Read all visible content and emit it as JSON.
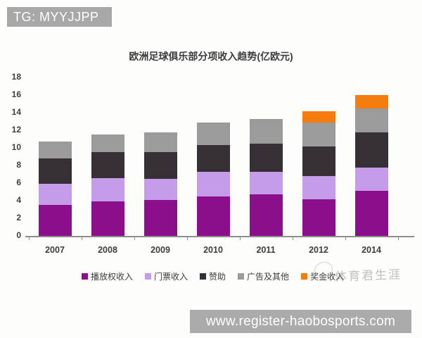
{
  "badges": {
    "top_left": "TG: MYYJJPP",
    "bottom_right": "www.register-haobosports.com"
  },
  "watermark": {
    "text": "体育君生涯"
  },
  "chart_data": {
    "type": "bar",
    "stacked": true,
    "title": "欧洲足球俱乐部分项收入趋势(亿欧元)",
    "xlabel": "",
    "ylabel": "",
    "ylim": [
      0,
      18
    ],
    "ytick_step": 2,
    "grid": false,
    "legend_position": "bottom",
    "categories": [
      "2007",
      "2008",
      "2009",
      "2010",
      "2011",
      "2012",
      "2014"
    ],
    "series": [
      {
        "name": "播放权收入",
        "color": "#8B0E8B",
        "values": [
          3.5,
          3.9,
          4.1,
          4.5,
          4.7,
          4.2,
          5.1
        ]
      },
      {
        "name": "门票收入",
        "color": "#C59CE9",
        "values": [
          2.4,
          2.7,
          2.4,
          2.8,
          2.6,
          2.6,
          2.7
        ]
      },
      {
        "name": "赞助",
        "color": "#363036",
        "values": [
          2.9,
          2.9,
          3.0,
          3.0,
          3.2,
          3.4,
          4.0
        ]
      },
      {
        "name": "广告及其他",
        "color": "#9B9B9B",
        "values": [
          1.9,
          2.0,
          2.3,
          2.6,
          2.8,
          2.7,
          2.7
        ]
      },
      {
        "name": "奖金收入",
        "color": "#F57C0E",
        "values": [
          0,
          0,
          0,
          0,
          0,
          1.3,
          1.5
        ]
      }
    ],
    "totals": [
      10.7,
      11.5,
      11.8,
      12.9,
      13.3,
      14.2,
      16.0
    ]
  }
}
